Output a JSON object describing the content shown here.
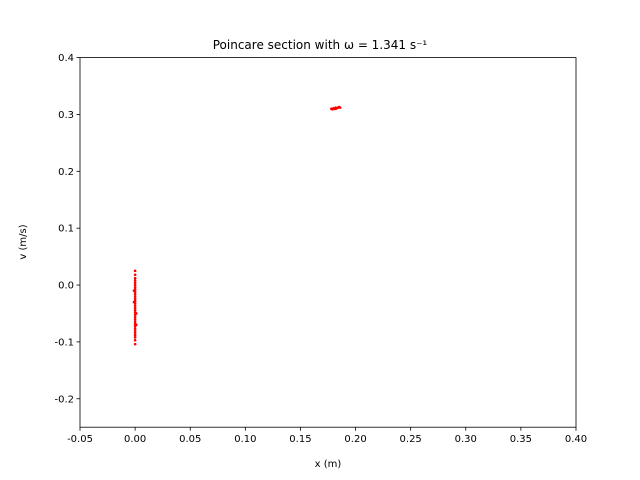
{
  "chart_data": {
    "type": "scatter",
    "title": "Poincare section with ω = 1.341 s⁻¹",
    "xlabel": "x (m)",
    "ylabel": "v (m/s)",
    "xlim": [
      -0.05,
      0.4
    ],
    "ylim": [
      -0.25,
      0.4
    ],
    "xticks": [
      "-0.05",
      "0.00",
      "0.05",
      "0.10",
      "0.15",
      "0.20",
      "0.25",
      "0.30",
      "0.35",
      "0.40"
    ],
    "yticks": [
      "-0.2",
      "-0.1",
      "0.0",
      "0.1",
      "0.2",
      "0.3",
      "0.4"
    ],
    "grid": false,
    "marker_color": "#ff0000",
    "series": [
      {
        "points": [
          [
            0.0,
            0.025
          ],
          [
            0.0,
            0.018
          ],
          [
            0.0,
            0.012
          ],
          [
            0.0,
            0.008
          ],
          [
            0.0,
            0.004
          ],
          [
            0.0,
            0.0
          ],
          [
            0.0,
            -0.004
          ],
          [
            0.0,
            -0.008
          ],
          [
            0.0,
            -0.012
          ],
          [
            0.0,
            -0.016
          ],
          [
            0.0,
            -0.02
          ],
          [
            0.0,
            -0.024
          ],
          [
            0.0,
            -0.028
          ],
          [
            0.0,
            -0.032
          ],
          [
            0.0,
            -0.036
          ],
          [
            0.0,
            -0.04
          ],
          [
            0.0,
            -0.044
          ],
          [
            0.0,
            -0.048
          ],
          [
            0.0,
            -0.052
          ],
          [
            0.0,
            -0.056
          ],
          [
            0.0,
            -0.06
          ],
          [
            0.0,
            -0.064
          ],
          [
            0.0,
            -0.068
          ],
          [
            0.0,
            -0.072
          ],
          [
            0.0,
            -0.076
          ],
          [
            0.0,
            -0.08
          ],
          [
            0.0,
            -0.084
          ],
          [
            0.0,
            -0.088
          ],
          [
            0.0,
            -0.092
          ],
          [
            0.0,
            -0.097
          ],
          [
            0.0,
            -0.104
          ],
          [
            0.001,
            -0.05
          ],
          [
            0.001,
            -0.07
          ],
          [
            -0.001,
            -0.03
          ],
          [
            -0.001,
            -0.01
          ],
          [
            0.178,
            0.31
          ],
          [
            0.18,
            0.311
          ],
          [
            0.181,
            0.31
          ],
          [
            0.182,
            0.312
          ],
          [
            0.183,
            0.311
          ],
          [
            0.184,
            0.312
          ],
          [
            0.185,
            0.313
          ],
          [
            0.179,
            0.309
          ],
          [
            0.186,
            0.312
          ],
          [
            0.182,
            0.31
          ]
        ]
      }
    ]
  }
}
